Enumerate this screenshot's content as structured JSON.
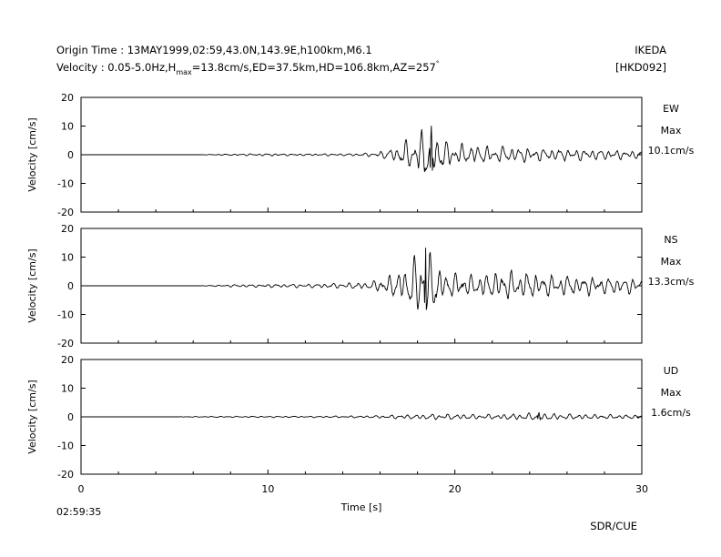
{
  "header": {
    "origin_time": "Origin Time : 13MAY1999,02:59,43.0N,143.9E,h100km,M6.1",
    "velocity_prefix": "Velocity : 0.05-5.0Hz,H",
    "velocity_sub": "max",
    "velocity_suffix": "=13.8cm/s,ED=37.5km,HD=106.8km,AZ=257",
    "velocity_deg": "°",
    "station_name": "IKEDA",
    "station_code": "[HKD092]"
  },
  "footer": {
    "start_time": "02:59:35",
    "credit": "SDR/CUE"
  },
  "chart_data": [
    {
      "type": "line",
      "component": "EW",
      "max_label": "Max",
      "max_value": "10.1cm/s",
      "peak_abs": 10.1,
      "ylabel": "Velocity [cm/s]",
      "ylim": [
        -20,
        20
      ],
      "yticks": [
        "20",
        "10",
        "0",
        "-10",
        "-20"
      ],
      "xlim": [
        0,
        30
      ],
      "trace_start": 6.5,
      "envelope": [
        [
          6.5,
          0.05
        ],
        [
          8,
          0.3
        ],
        [
          10,
          0.4
        ],
        [
          12,
          0.35
        ],
        [
          14,
          0.4
        ],
        [
          15.5,
          0.7
        ],
        [
          16.3,
          1.5
        ],
        [
          17,
          3.5
        ],
        [
          17.8,
          6.5
        ],
        [
          18.3,
          9
        ],
        [
          18.8,
          8
        ],
        [
          19.5,
          5
        ],
        [
          20.5,
          3.5
        ],
        [
          22,
          3
        ],
        [
          24,
          2.5
        ],
        [
          27,
          2
        ],
        [
          30,
          1.5
        ]
      ],
      "peak_times": [
        18.75
      ],
      "seed": 7
    },
    {
      "type": "line",
      "component": "NS",
      "max_label": "Max",
      "max_value": "13.3cm/s",
      "peak_abs": 13.3,
      "ylabel": "Velocity [cm/s]",
      "ylim": [
        -20,
        20
      ],
      "yticks": [
        "20",
        "10",
        "0",
        "-10",
        "-20"
      ],
      "xlim": [
        0,
        30
      ],
      "trace_start": 6.5,
      "envelope": [
        [
          6.5,
          0.05
        ],
        [
          8,
          0.3
        ],
        [
          10,
          0.4
        ],
        [
          12,
          0.45
        ],
        [
          14,
          0.6
        ],
        [
          15.5,
          1
        ],
        [
          16.5,
          2.5
        ],
        [
          17.2,
          4
        ],
        [
          17.8,
          6.5
        ],
        [
          18.3,
          10
        ],
        [
          18.7,
          7
        ],
        [
          19.5,
          3
        ],
        [
          21,
          2.5
        ],
        [
          22.5,
          3.5
        ],
        [
          23.5,
          3.5
        ],
        [
          25,
          2.5
        ],
        [
          28,
          2
        ],
        [
          30,
          1.8
        ]
      ],
      "peak_times": [
        18.45
      ],
      "seed": 19
    },
    {
      "type": "line",
      "component": "UD",
      "max_label": "Max",
      "max_value": "1.6cm/s",
      "peak_abs": 1.6,
      "ylabel": "Velocity [cm/s]",
      "ylim": [
        -20,
        20
      ],
      "yticks": [
        "20",
        "10",
        "0",
        "-10",
        "-20"
      ],
      "xlim": [
        0,
        30
      ],
      "xticks": [
        "0",
        "10",
        "20",
        "30"
      ],
      "xlabel": "Time [s]",
      "trace_start": 5.3,
      "envelope": [
        [
          5.3,
          0.1
        ],
        [
          8,
          0.25
        ],
        [
          12,
          0.25
        ],
        [
          15,
          0.35
        ],
        [
          17,
          0.7
        ],
        [
          18.5,
          1
        ],
        [
          20,
          1
        ],
        [
          22,
          0.9
        ],
        [
          24.5,
          1.3
        ],
        [
          26,
          1
        ],
        [
          28,
          0.8
        ],
        [
          30,
          0.7
        ]
      ],
      "peak_times": [
        24.5
      ],
      "seed": 31
    }
  ]
}
